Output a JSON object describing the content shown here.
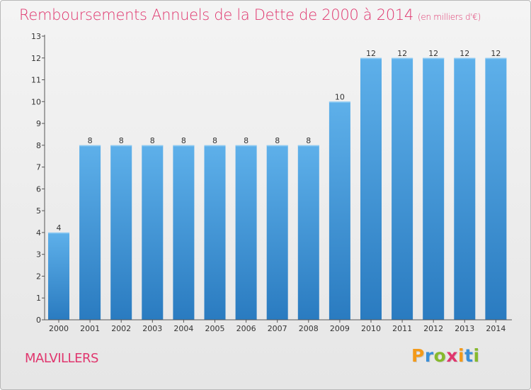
{
  "title": "Remboursements Annuels de la Dette de 2000 à 2014",
  "unit": "(en milliers d'€)",
  "commune": "MALVILLERS",
  "logo": {
    "letters": [
      "P",
      "r",
      "o",
      "x",
      "i",
      "t",
      "i"
    ],
    "colors": [
      "#f39a1a",
      "#3a8fd8",
      "#86b92d",
      "#e0366e",
      "#f39a1a",
      "#3a8fd8",
      "#86b92d"
    ]
  },
  "colors": {
    "bar_top": "#5eb0ea",
    "bar_bottom": "#2a7bc0",
    "title": "#e0366e",
    "axis": "#555555",
    "text": "#333333"
  },
  "chart_data": {
    "type": "bar",
    "categories": [
      "2000",
      "2001",
      "2002",
      "2003",
      "2004",
      "2005",
      "2006",
      "2007",
      "2008",
      "2009",
      "2010",
      "2011",
      "2012",
      "2013",
      "2014"
    ],
    "values": [
      4,
      8,
      8,
      8,
      8,
      8,
      8,
      8,
      8,
      10,
      12,
      12,
      12,
      12,
      12
    ],
    "title": "Remboursements Annuels de la Dette de 2000 à 2014",
    "xlabel": "",
    "ylabel": "",
    "ylim": [
      0,
      13
    ],
    "yticks": [
      0,
      1,
      2,
      3,
      4,
      5,
      6,
      7,
      8,
      9,
      10,
      11,
      12,
      13
    ],
    "grid": false,
    "data_labels": true
  }
}
